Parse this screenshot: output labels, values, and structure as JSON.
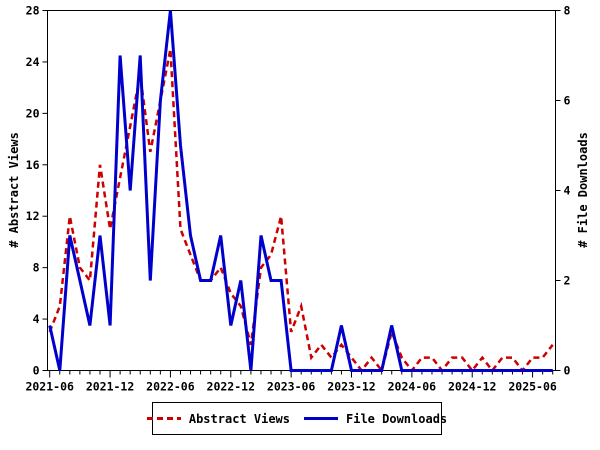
{
  "chart_data": {
    "type": "line",
    "title": "",
    "grid": false,
    "legend_position": "bottom-center",
    "x_categories": [
      "2021-06",
      "2021-07",
      "2021-08",
      "2021-09",
      "2021-10",
      "2021-11",
      "2021-12",
      "2022-01",
      "2022-02",
      "2022-03",
      "2022-04",
      "2022-05",
      "2022-06",
      "2022-07",
      "2022-08",
      "2022-09",
      "2022-10",
      "2022-11",
      "2022-12",
      "2023-01",
      "2023-02",
      "2023-03",
      "2023-04",
      "2023-05",
      "2023-06",
      "2023-07",
      "2023-08",
      "2023-09",
      "2023-10",
      "2023-11",
      "2023-12",
      "2024-01",
      "2024-02",
      "2024-03",
      "2024-04",
      "2024-05",
      "2024-06",
      "2024-07",
      "2024-08",
      "2024-09",
      "2024-10",
      "2024-11",
      "2024-12",
      "2025-01",
      "2025-02",
      "2025-03",
      "2025-04",
      "2025-05",
      "2025-06",
      "2025-07",
      "2025-08"
    ],
    "x_tick_labels": [
      "2021-06",
      "2021-12",
      "2022-06",
      "2022-12",
      "2023-06",
      "2023-12",
      "2024-06",
      "2024-12",
      "2025-06"
    ],
    "x_axis": {
      "minor_tick_every_months": 1,
      "major_tick_every_months": 6
    },
    "left_axis": {
      "label": "# Abstract Views",
      "min": 0,
      "max": 28,
      "ticks": [
        0,
        4,
        8,
        12,
        16,
        20,
        24,
        28
      ]
    },
    "right_axis": {
      "label": "# File Downloads",
      "min": 0,
      "max": 8,
      "ticks": [
        0,
        2,
        4,
        6,
        8
      ]
    },
    "series": [
      {
        "name": "Abstract Views",
        "axis": "left",
        "color": "#cc0000",
        "style": "dashed",
        "values": [
          3,
          5,
          12,
          8,
          7,
          16,
          11,
          15,
          19,
          23,
          17,
          21,
          25,
          11,
          9,
          7,
          7,
          8,
          6,
          5,
          2,
          8,
          9,
          12,
          3,
          5,
          1,
          2,
          1,
          2,
          1,
          0,
          1,
          0,
          3,
          1,
          0,
          1,
          1,
          0,
          1,
          1,
          0,
          1,
          0,
          1,
          1,
          0,
          1,
          1,
          2
        ]
      },
      {
        "name": "File Downloads",
        "axis": "right",
        "color": "#0000cc",
        "style": "solid",
        "values": [
          1,
          0,
          3,
          2,
          1,
          3,
          1,
          7,
          4,
          7,
          2,
          6,
          8,
          5,
          3,
          2,
          2,
          3,
          1,
          2,
          0,
          3,
          2,
          2,
          0,
          0,
          0,
          0,
          0,
          1,
          0,
          0,
          0,
          0,
          1,
          0,
          0,
          0,
          0,
          0,
          0,
          0,
          0,
          0,
          0,
          0,
          0,
          0,
          0,
          0,
          0
        ]
      }
    ]
  },
  "legend": {
    "items": [
      {
        "label": "Abstract Views"
      },
      {
        "label": "File Downloads"
      }
    ]
  }
}
